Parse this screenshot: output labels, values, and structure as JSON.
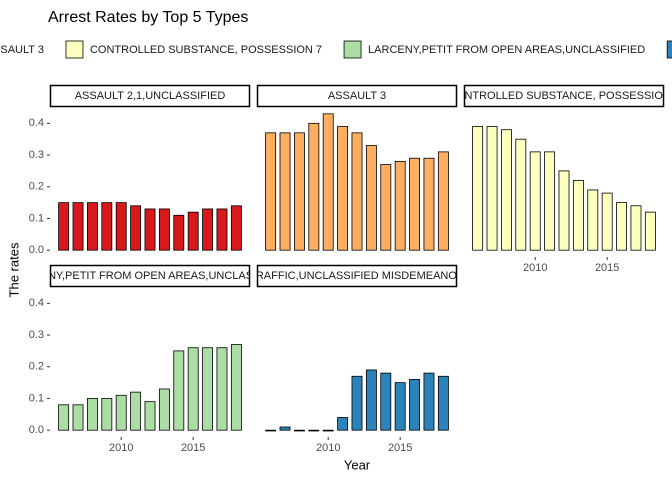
{
  "chart_data": {
    "type": "bar",
    "title": "Arrest Rates by Top 5 Types",
    "x_label": "Year",
    "y_label": "The rates",
    "x": [
      2006,
      2007,
      2008,
      2009,
      2010,
      2011,
      2012,
      2013,
      2014,
      2015,
      2016,
      2017,
      2018
    ],
    "xlim": [
      2005.4,
      2018.6
    ],
    "xticks": [
      2010,
      2015
    ],
    "ylim": [
      -0.0215,
      0.4515
    ],
    "yticks": [
      {
        "value": 0,
        "label": "0.0"
      },
      {
        "value": 0.1,
        "label": "0.1"
      },
      {
        "value": 0.2,
        "label": "0.2"
      },
      {
        "value": 0.3,
        "label": "0.3"
      },
      {
        "value": 0.4,
        "label": "0.4"
      }
    ],
    "grid": false,
    "series": [
      {
        "name": "ASSAULT 2,1,UNCLASSIFIED",
        "color": "#d7191c",
        "values": [
          0.15,
          0.15,
          0.15,
          0.15,
          0.15,
          0.14,
          0.13,
          0.13,
          0.11,
          0.12,
          0.13,
          0.13,
          0.14
        ]
      },
      {
        "name": "ASSAULT 3",
        "color": "#fdae61",
        "values": [
          0.37,
          0.37,
          0.37,
          0.4,
          0.43,
          0.39,
          0.37,
          0.33,
          0.27,
          0.28,
          0.29,
          0.29,
          0.31
        ]
      },
      {
        "name": "CONTROLLED SUBSTANCE, POSSESSION 7",
        "color": "#ffffbf",
        "values": [
          0.39,
          0.39,
          0.38,
          0.35,
          0.31,
          0.31,
          0.25,
          0.22,
          0.19,
          0.18,
          0.15,
          0.14,
          0.12
        ]
      },
      {
        "name": "LARCENY,PETIT FROM OPEN AREAS,UNCLASSIFIED",
        "color": "#abdda4",
        "values": [
          0.08,
          0.08,
          0.1,
          0.1,
          0.11,
          0.12,
          0.09,
          0.13,
          0.25,
          0.26,
          0.26,
          0.26,
          0.27
        ]
      },
      {
        "name": "TRAFFIC,UNCLASSIFIED MISDEMEANOR",
        "color": "#2b83ba",
        "values": [
          0.0,
          0.01,
          0.0,
          0.0,
          0.0,
          0.04,
          0.17,
          0.19,
          0.18,
          0.15,
          0.16,
          0.18,
          0.17
        ]
      }
    ]
  }
}
